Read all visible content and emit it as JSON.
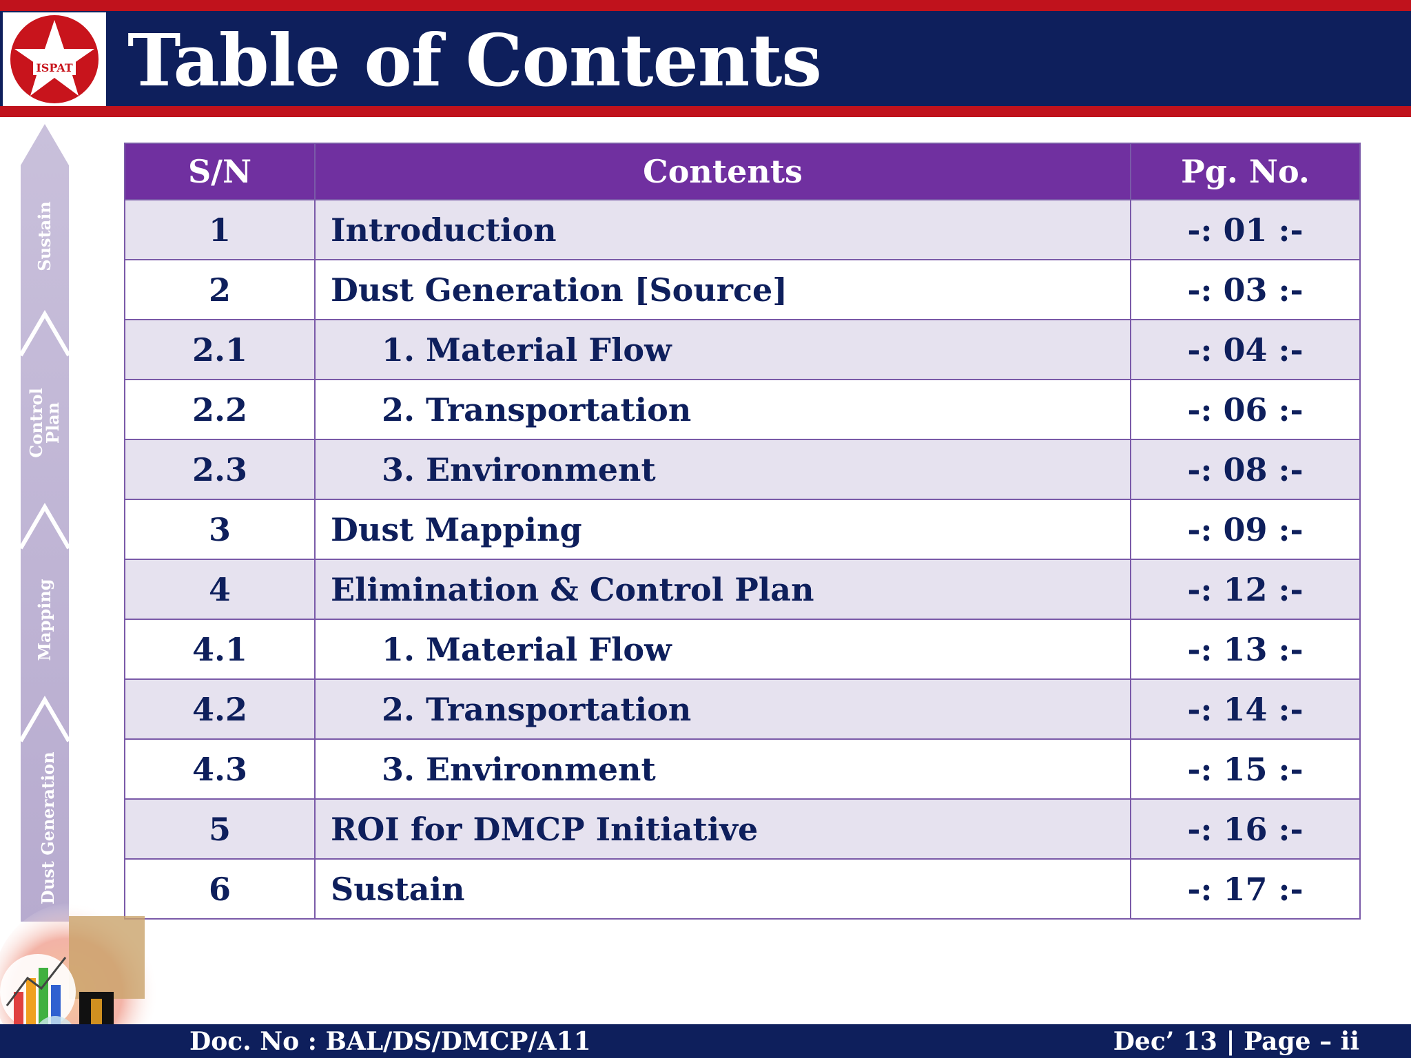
{
  "header": {
    "title": "Table of Contents",
    "logo_text": "ISPAT"
  },
  "sidebar": {
    "stages": [
      "Sustain",
      "Control Plan",
      "Mapping",
      "Dust Generation"
    ]
  },
  "table": {
    "headers": {
      "sn": "S/N",
      "contents": "Contents",
      "page": "Pg. No."
    },
    "rows": [
      {
        "sn": "1",
        "title": "Introduction",
        "page": "-: 01 :-"
      },
      {
        "sn": "2",
        "title": "Dust Generation [Source]",
        "page": "-: 03 :-"
      },
      {
        "sn": "2.1",
        "title": "1. Material Flow",
        "page": "-: 04 :-"
      },
      {
        "sn": "2.2",
        "title": "2. Transportation",
        "page": "-: 06 :-"
      },
      {
        "sn": "2.3",
        "title": "3. Environment",
        "page": "-: 08 :-"
      },
      {
        "sn": "3",
        "title": "Dust Mapping",
        "page": "-: 09 :-"
      },
      {
        "sn": "4",
        "title": "Elimination & Control Plan",
        "page": "-: 12 :-"
      },
      {
        "sn": "4.1",
        "title": "1. Material Flow",
        "page": "-: 13 :-"
      },
      {
        "sn": "4.2",
        "title": "2. Transportation",
        "page": "-: 14 :-"
      },
      {
        "sn": "4.3",
        "title": "3. Environment",
        "page": "-: 15 :-"
      },
      {
        "sn": "5",
        "title": "ROI for DMCP Initiative",
        "page": "-: 16 :-"
      },
      {
        "sn": "6",
        "title": "Sustain",
        "page": "-: 17 :-"
      }
    ]
  },
  "footer": {
    "doc_no": "Doc. No : BAL/DS/DMCP/A11",
    "page_info": "Dec’ 13 | Page – ii"
  },
  "colors": {
    "navy": "#0e1f5c",
    "red": "#c0121c",
    "purple_header": "#7030a0",
    "row_shade": "#e6e2ef"
  }
}
